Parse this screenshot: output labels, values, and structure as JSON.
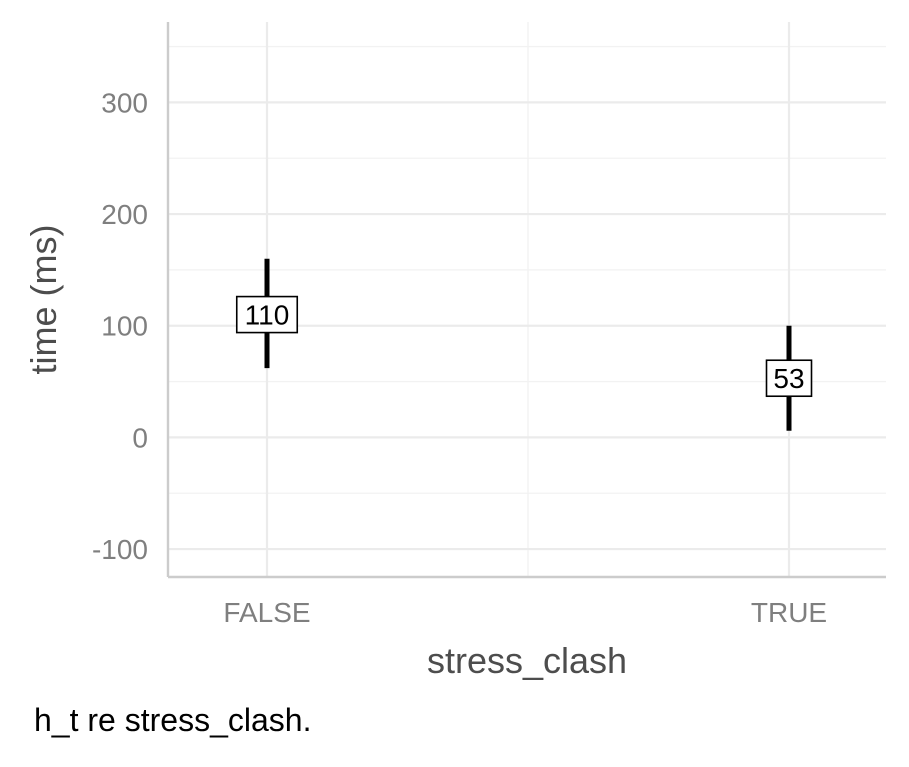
{
  "chart_data": {
    "type": "errorbar",
    "categories": [
      "FALSE",
      "TRUE"
    ],
    "values": [
      110,
      53
    ],
    "lower": [
      62,
      6
    ],
    "upper": [
      160,
      100
    ],
    "value_labels": [
      "110",
      "53"
    ],
    "xlabel": "stress_clash",
    "ylabel": "time (ms)",
    "ylim": [
      -125,
      372
    ],
    "yticks": [
      -100,
      0,
      100,
      200,
      300
    ],
    "ytick_labels": [
      "-100",
      "0",
      "100",
      "200",
      "300"
    ],
    "grid": true,
    "colors": {
      "marks": "#000000",
      "grid": "#ebebeb",
      "axis": "#cccccc",
      "tick_text": "#7f7f7f",
      "title_text": "#4d4d4d"
    }
  },
  "caption": "h_t re stress_clash."
}
